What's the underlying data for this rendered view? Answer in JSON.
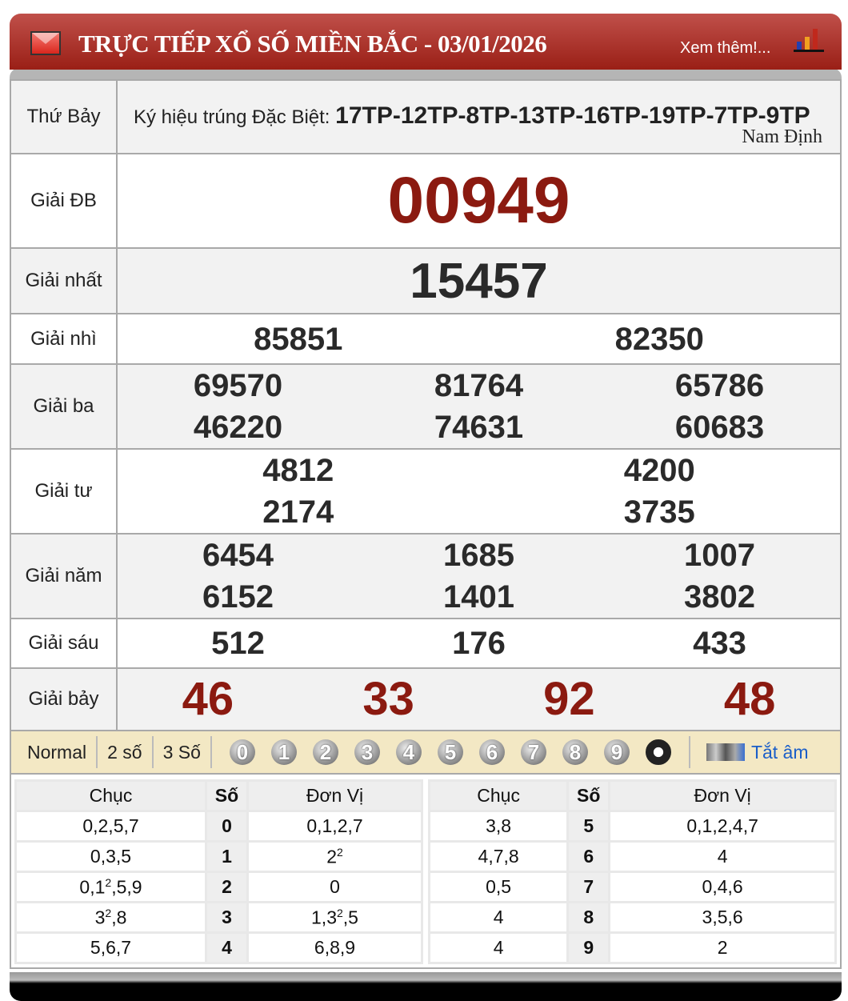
{
  "header": {
    "title": "TRỰC TIẾP XỔ SỐ MIỀN BẮC - 03/01/2026",
    "more_link": "Xem thêm!...",
    "icon": "mail-icon",
    "chart_icon": "bar-chart-icon"
  },
  "info": {
    "day": "Thứ Bảy",
    "code_label": "Ký hiệu trúng Đặc Biệt:",
    "code_value": "17TP-12TP-8TP-13TP-16TP-19TP-7TP-9TP",
    "province": "Nam Định"
  },
  "prizes": {
    "db": {
      "label": "Giải ĐB",
      "numbers": [
        "00949"
      ]
    },
    "g1": {
      "label": "Giải nhất",
      "numbers": [
        "15457"
      ]
    },
    "g2": {
      "label": "Giải nhì",
      "numbers": [
        "85851",
        "82350"
      ]
    },
    "g3": {
      "label": "Giải ba",
      "numbers": [
        "69570",
        "81764",
        "65786",
        "46220",
        "74631",
        "60683"
      ]
    },
    "g4": {
      "label": "Giải tư",
      "numbers": [
        "4812",
        "4200",
        "2174",
        "3735"
      ]
    },
    "g5": {
      "label": "Giải năm",
      "numbers": [
        "6454",
        "1685",
        "1007",
        "6152",
        "1401",
        "3802"
      ]
    },
    "g6": {
      "label": "Giải sáu",
      "numbers": [
        "512",
        "176",
        "433"
      ]
    },
    "g7": {
      "label": "Giải bảy",
      "numbers": [
        "46",
        "33",
        "92",
        "48"
      ]
    }
  },
  "colors": {
    "accent_red": "#8b1a10",
    "header_red": "#9a1f16",
    "toolbar_bg": "#f3e8c4",
    "link_blue": "#1a5ec9"
  },
  "toolbar": {
    "modes": [
      "Normal",
      "2 số",
      "3 Số"
    ],
    "digits": [
      "0",
      "1",
      "2",
      "3",
      "4",
      "5",
      "6",
      "7",
      "8",
      "9"
    ],
    "yin_yang_icon": "yin-yang-icon",
    "mute_label": "Tắt âm",
    "mute_icon": "speaker-icon"
  },
  "loto": {
    "headers": {
      "chuc": "Chục",
      "so": "Số",
      "donvi": "Đơn Vị"
    },
    "rows": [
      {
        "chuc": [
          {
            "t": "0,2,5,7"
          }
        ],
        "so": "0",
        "donvi": [
          {
            "t": "0,1,2,7"
          }
        ]
      },
      {
        "chuc": [
          {
            "t": "0,3,5"
          }
        ],
        "so": "1",
        "donvi": [
          {
            "t": "2",
            "sup": "2"
          }
        ]
      },
      {
        "chuc": [
          {
            "t": "0,1",
            "sup": "2"
          },
          {
            "t": ",5,9"
          }
        ],
        "so": "2",
        "donvi": [
          {
            "t": "0"
          }
        ]
      },
      {
        "chuc": [
          {
            "t": "3",
            "sup": "2"
          },
          {
            "t": ",8"
          }
        ],
        "so": "3",
        "donvi": [
          {
            "t": "1,3",
            "sup": "2"
          },
          {
            "t": ",5"
          }
        ]
      },
      {
        "chuc": [
          {
            "t": "5,6,7"
          }
        ],
        "so": "4",
        "donvi": [
          {
            "t": "6,8,9"
          }
        ]
      },
      {
        "chuc": [
          {
            "t": "3,8"
          }
        ],
        "so": "5",
        "donvi": [
          {
            "t": "0,1,2,4,7"
          }
        ]
      },
      {
        "chuc": [
          {
            "t": "4,7,8"
          }
        ],
        "so": "6",
        "donvi": [
          {
            "t": "4"
          }
        ]
      },
      {
        "chuc": [
          {
            "t": "0,5"
          }
        ],
        "so": "7",
        "donvi": [
          {
            "t": "0,4,6"
          }
        ]
      },
      {
        "chuc": [
          {
            "t": "4"
          }
        ],
        "so": "8",
        "donvi": [
          {
            "t": "3,5,6"
          }
        ]
      },
      {
        "chuc": [
          {
            "t": "4"
          }
        ],
        "so": "9",
        "donvi": [
          {
            "t": "2"
          }
        ]
      }
    ]
  }
}
